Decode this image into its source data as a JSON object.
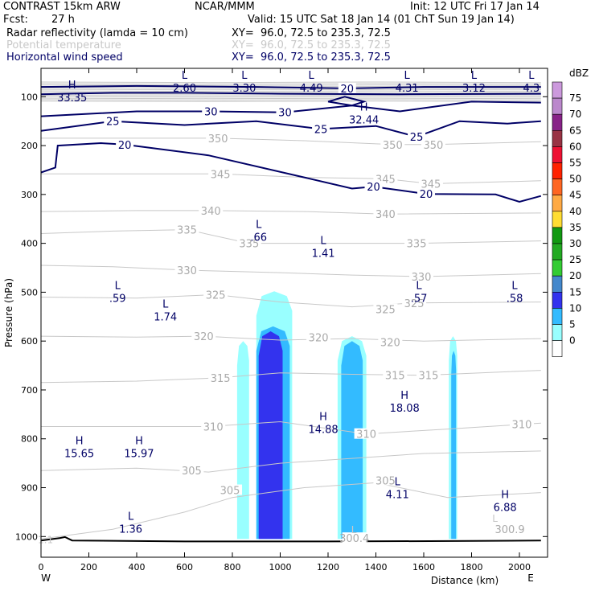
{
  "header": {
    "model": "CONTRAST 15km ARW",
    "center": "NCAR/MMM",
    "init": "Init: 12 UTC Fri 17 Jan 14",
    "fcst_label": "Fcst:",
    "fcst_value": "27 h",
    "valid": "Valid: 15 UTC Sat 18 Jan 14 (01 ChT Sun 19 Jan 14)"
  },
  "fields": [
    {
      "name": "Radar reflectivity (lamda = 10 cm)",
      "xy": "XY=  96.0, 72.5 to 235.3, 72.5",
      "color": "#000000"
    },
    {
      "name": "Potential temperature",
      "xy": "XY=  96.0, 72.5 to 235.3, 72.5",
      "color": "#c8c8c8"
    },
    {
      "name": "Horizontal wind speed",
      "xy": "XY=  96.0, 72.5 to 235.3, 72.5",
      "color": "#000066"
    }
  ],
  "chart_data": {
    "type": "heatmap",
    "xlabel": "Distance (km)",
    "ylabel": "Pressure (hPa)",
    "xlim": [
      0,
      2090
    ],
    "ylim": [
      1050,
      63
    ],
    "x_ticks": [
      0,
      200,
      400,
      600,
      800,
      1000,
      1200,
      1400,
      1600,
      1800,
      2000
    ],
    "y_ticks": [
      100,
      200,
      300,
      400,
      500,
      600,
      700,
      800,
      900,
      1000
    ],
    "x_end_labels": {
      "left": "W",
      "right": "E"
    },
    "colorbar": {
      "unit": "dBZ",
      "levels": [
        0,
        5,
        10,
        15,
        20,
        25,
        30,
        35,
        40,
        45,
        50,
        55,
        60,
        65,
        70,
        75
      ],
      "colors": [
        "#ffffff",
        "#99ffff",
        "#33bbff",
        "#3333ee",
        "#4488cc",
        "#33cc33",
        "#22aa22",
        "#119911",
        "#ffdd33",
        "#ffaa44",
        "#ff6622",
        "#ff2200",
        "#ee1133",
        "#993344",
        "#882288",
        "#bb88cc",
        "#cc99dd"
      ]
    },
    "reflectivity_cells": [
      {
        "band": "5-10",
        "x": [
          [
            820,
            870
          ],
          [
            900,
            1050
          ],
          [
            1240,
            1360
          ],
          [
            1705,
            1740
          ]
        ],
        "p_top": [
          600,
          498,
          590,
          590
        ]
      },
      {
        "band": "10-15",
        "x": [
          [
            900,
            1040
          ],
          [
            1255,
            1345
          ],
          [
            1715,
            1735
          ]
        ],
        "p_top": [
          570,
          600,
          620
        ]
      },
      {
        "band": "15-20",
        "x": [
          [
            910,
            1010
          ]
        ],
        "p_top": [
          580
        ]
      }
    ],
    "theta_contour_labels": [
      {
        "text": "305",
        "x": 790,
        "p": 905
      },
      {
        "text": "305",
        "x": 1440,
        "p": 885
      },
      {
        "text": "305",
        "x": 630,
        "p": 865
      },
      {
        "text": "310",
        "x": 720,
        "p": 775
      },
      {
        "text": "310",
        "x": 1360,
        "p": 790
      },
      {
        "text": "310",
        "x": 2010,
        "p": 770
      },
      {
        "text": "315",
        "x": 750,
        "p": 675
      },
      {
        "text": "315",
        "x": 1480,
        "p": 670
      },
      {
        "text": "315",
        "x": 1620,
        "p": 670
      },
      {
        "text": "320",
        "x": 680,
        "p": 590
      },
      {
        "text": "320",
        "x": 1160,
        "p": 592
      },
      {
        "text": "320",
        "x": 1460,
        "p": 602
      },
      {
        "text": "325",
        "x": 730,
        "p": 505
      },
      {
        "text": "325",
        "x": 1440,
        "p": 535
      },
      {
        "text": "325",
        "x": 1560,
        "p": 522
      },
      {
        "text": "330",
        "x": 610,
        "p": 455
      },
      {
        "text": "330",
        "x": 1590,
        "p": 468
      },
      {
        "text": "335",
        "x": 610,
        "p": 372
      },
      {
        "text": "335",
        "x": 870,
        "p": 400
      },
      {
        "text": "335",
        "x": 1570,
        "p": 400
      },
      {
        "text": "340",
        "x": 710,
        "p": 333
      },
      {
        "text": "340",
        "x": 1440,
        "p": 340
      },
      {
        "text": "345",
        "x": 750,
        "p": 258
      },
      {
        "text": "345",
        "x": 1440,
        "p": 268
      },
      {
        "text": "345",
        "x": 1630,
        "p": 278
      },
      {
        "text": "350",
        "x": 740,
        "p": 185
      },
      {
        "text": "350",
        "x": 1470,
        "p": 198
      },
      {
        "text": "350",
        "x": 1640,
        "p": 198
      },
      {
        "text": "300.4",
        "x": 1310,
        "p": 1003
      },
      {
        "text": "300.9",
        "x": 1960,
        "p": 985
      }
    ],
    "wind_contour_labels": [
      {
        "text": "20",
        "x": 350,
        "p": 198
      },
      {
        "text": "20",
        "x": 1390,
        "p": 284
      },
      {
        "text": "20",
        "x": 1610,
        "p": 299
      },
      {
        "text": "20",
        "x": 1280,
        "p": 83
      },
      {
        "text": "25",
        "x": 300,
        "p": 150
      },
      {
        "text": "25",
        "x": 1170,
        "p": 166
      },
      {
        "text": "25",
        "x": 1570,
        "p": 182
      },
      {
        "text": "30",
        "x": 710,
        "p": 130
      },
      {
        "text": "30",
        "x": 1020,
        "p": 132
      }
    ],
    "extrema_labels": [
      {
        "kind": "H",
        "value": "33.35",
        "x": 130,
        "p": 90,
        "color": "#000066"
      },
      {
        "kind": "H",
        "value": "32.44",
        "x": 1350,
        "p": 135,
        "color": "#000066"
      },
      {
        "kind": "L",
        "value": "2.60",
        "x": 600,
        "p": 70,
        "color": "#000066"
      },
      {
        "kind": "L",
        "value": "3.30",
        "x": 850,
        "p": 70,
        "color": "#000066"
      },
      {
        "kind": "L",
        "value": "4.49",
        "x": 1130,
        "p": 70,
        "color": "#000066"
      },
      {
        "kind": "L",
        "value": "4.31",
        "x": 1530,
        "p": 70,
        "color": "#000066"
      },
      {
        "kind": "L",
        "value": "3.12",
        "x": 1810,
        "p": 70,
        "color": "#000066"
      },
      {
        "kind": "L",
        "value": "4.3",
        "x": 2050,
        "p": 70,
        "color": "#000066"
      },
      {
        "kind": "L",
        "value": ".66",
        "x": 910,
        "p": 375,
        "color": "#000066"
      },
      {
        "kind": "L",
        "value": "1.41",
        "x": 1180,
        "p": 408,
        "color": "#000066"
      },
      {
        "kind": "L",
        "value": ".59",
        "x": 320,
        "p": 500,
        "color": "#000066"
      },
      {
        "kind": "L",
        "value": "1.74",
        "x": 520,
        "p": 538,
        "color": "#000066"
      },
      {
        "kind": "L",
        "value": ".57",
        "x": 1580,
        "p": 500,
        "color": "#000066"
      },
      {
        "kind": "L",
        "value": ".58",
        "x": 1980,
        "p": 500,
        "color": "#000066"
      },
      {
        "kind": "H",
        "value": "18.08",
        "x": 1520,
        "p": 725,
        "color": "#000066"
      },
      {
        "kind": "H",
        "value": "14.88",
        "x": 1180,
        "p": 768,
        "color": "#000066"
      },
      {
        "kind": "H",
        "value": "15.65",
        "x": 160,
        "p": 818,
        "color": "#000066"
      },
      {
        "kind": "H",
        "value": "15.97",
        "x": 410,
        "p": 818,
        "color": "#000066"
      },
      {
        "kind": "L",
        "value": "4.11",
        "x": 1490,
        "p": 902,
        "color": "#000066"
      },
      {
        "kind": "H",
        "value": "6.88",
        "x": 1940,
        "p": 928,
        "color": "#000066"
      },
      {
        "kind": "L",
        "value": "1.36",
        "x": 375,
        "p": 972,
        "color": "#000066"
      }
    ],
    "plain_labels": [
      {
        "text": "1.1",
        "x": -20,
        "p": 1005,
        "color": "#c8c8c8"
      },
      {
        "text": "L",
        "x": 1880,
        "p": 962,
        "color": "#c8c8c8"
      },
      {
        "text": "L",
        "x": 1290,
        "p": 985,
        "color": "#c8c8c8"
      }
    ]
  }
}
